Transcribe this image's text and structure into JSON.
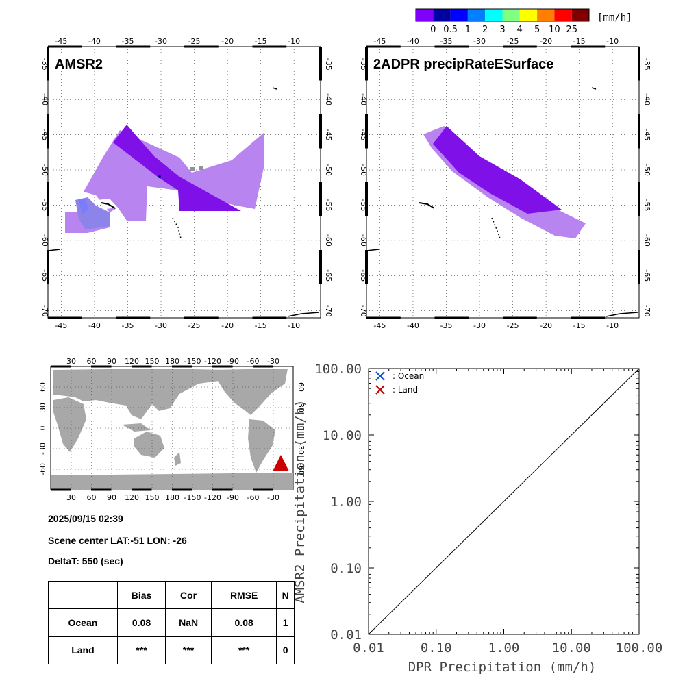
{
  "colorbar": {
    "unit": "[mm/h]",
    "colors": [
      "#8000ff",
      "#0000a0",
      "#0000ff",
      "#0080ff",
      "#00ffff",
      "#80ff80",
      "#ffff00",
      "#ff8000",
      "#ff0000",
      "#800000"
    ],
    "labels": [
      "0",
      "0.5",
      "1",
      "2",
      "3",
      "4",
      "5",
      "10",
      "25"
    ]
  },
  "map_amsr2": {
    "title": "AMSR2",
    "lon_ticks": [
      "-45",
      "-40",
      "-35",
      "-30",
      "-25",
      "-20",
      "-15",
      "-10"
    ],
    "lat_ticks": [
      "-35",
      "-40",
      "-45",
      "-50",
      "-55",
      "-60",
      "-65",
      "-70"
    ]
  },
  "map_dpr": {
    "title": "2ADPR precipRateESurface",
    "lon_ticks": [
      "-45",
      "-40",
      "-35",
      "-30",
      "-25",
      "-20",
      "-15",
      "-10"
    ],
    "lat_ticks": [
      "-35",
      "-40",
      "-45",
      "-50",
      "-55",
      "-60",
      "-65",
      "-70"
    ]
  },
  "world_map": {
    "top_ticks": [
      "30",
      "60",
      "90",
      "120",
      "150",
      "180",
      "-150",
      "-120",
      "-90",
      "-60",
      "-30"
    ],
    "lat_ticks": [
      "60",
      "30",
      "0",
      "-30",
      "-60"
    ],
    "marker_color": "#cc0000"
  },
  "info": {
    "datetime": "2025/09/15 02:39",
    "scene_center": "Scene center LAT:-51   LON: -26",
    "delta_t": "DeltaT:  550 (sec)"
  },
  "stats_table": {
    "headers": [
      "",
      "Bias",
      "Cor",
      "RMSE",
      "N"
    ],
    "rows": [
      [
        "Ocean",
        "0.08",
        "NaN",
        "0.08",
        "1"
      ],
      [
        "Land",
        "***",
        "***",
        "***",
        "0"
      ]
    ]
  },
  "chart_data": {
    "type": "scatter",
    "xlabel": "DPR Precipitation (mm/h)",
    "ylabel": "AMSR2 Precipitation (mm/h)",
    "xscale": "log",
    "yscale": "log",
    "xlim": [
      0.01,
      100
    ],
    "ylim": [
      0.01,
      100
    ],
    "x_tick_labels": [
      "0.01",
      "0.10",
      "1.00",
      "10.00",
      "100.00"
    ],
    "y_tick_labels": [
      "0.01",
      "0.10",
      "1.00",
      "10.00",
      "100.00"
    ],
    "legend_position": "top-left",
    "series": [
      {
        "name": ": Ocean",
        "marker": "x",
        "color": "#0050d0",
        "points": []
      },
      {
        "name": ": Land",
        "marker": "x",
        "color": "#c00000",
        "points": []
      }
    ],
    "reference_line": [
      [
        0.01,
        0.01
      ],
      [
        100,
        100
      ]
    ]
  }
}
